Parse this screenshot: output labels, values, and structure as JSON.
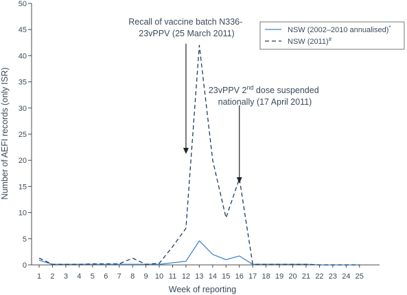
{
  "chart_data": {
    "type": "line",
    "xlabel": "Week of reporting",
    "ylabel": "Number of AEFI records (only ISR)",
    "xlim": [
      1,
      25
    ],
    "ylim": [
      0,
      50
    ],
    "x_ticks": [
      1,
      2,
      3,
      4,
      5,
      6,
      7,
      8,
      9,
      10,
      11,
      12,
      13,
      14,
      15,
      16,
      17,
      18,
      19,
      20,
      21,
      22,
      23,
      24,
      25
    ],
    "y_ticks": [
      0,
      5,
      10,
      15,
      20,
      25,
      30,
      35,
      40,
      45,
      50
    ],
    "grid": false,
    "legend_position": "top-right",
    "x": [
      1,
      2,
      3,
      4,
      5,
      6,
      7,
      8,
      9,
      10,
      11,
      12,
      13,
      14,
      15,
      16,
      17,
      18,
      19,
      20,
      21,
      22,
      23,
      24,
      25
    ],
    "series": [
      {
        "name": "NSW (2002–2010 annualised)",
        "name_sup": "*",
        "style": "solid",
        "color": "#3a86c8",
        "values": [
          0.9,
          0.1,
          0.1,
          0.1,
          0.1,
          0.1,
          0.1,
          0.1,
          0.1,
          0.1,
          0.4,
          0.7,
          4.6,
          2.0,
          1.0,
          1.7,
          0.1,
          0.1,
          0.1,
          0.1,
          0.1,
          0.0,
          0.0,
          0.0,
          0.0
        ]
      },
      {
        "name": "NSW (2011)",
        "name_sup": "#",
        "style": "dashed",
        "color": "#1f3a5c",
        "values": [
          1.3,
          0.1,
          0.1,
          0.1,
          0.2,
          0.2,
          0.2,
          1.3,
          0.1,
          0.3,
          3.5,
          7.0,
          42.0,
          20.0,
          9.0,
          16.5,
          0.1,
          0.1,
          0.1,
          0.1,
          0.1,
          0.0,
          0.0,
          0.0,
          0.0
        ]
      }
    ],
    "annotations": [
      {
        "lines": [
          "Recall of vaccine batch N336-",
          "23vPPV (25 March 2011)"
        ],
        "arrow_x": 12,
        "arrow_from_y": 42.3,
        "arrow_to_y": 21.2
      },
      {
        "line1_prefix": "23vPPV 2",
        "line1_sup": "nd",
        "line1_suffix": " dose suspended",
        "line2": "nationally (17 April 2011)",
        "arrow_x": 16,
        "arrow_from_y": 30.5,
        "arrow_to_y": 15.6
      }
    ]
  }
}
